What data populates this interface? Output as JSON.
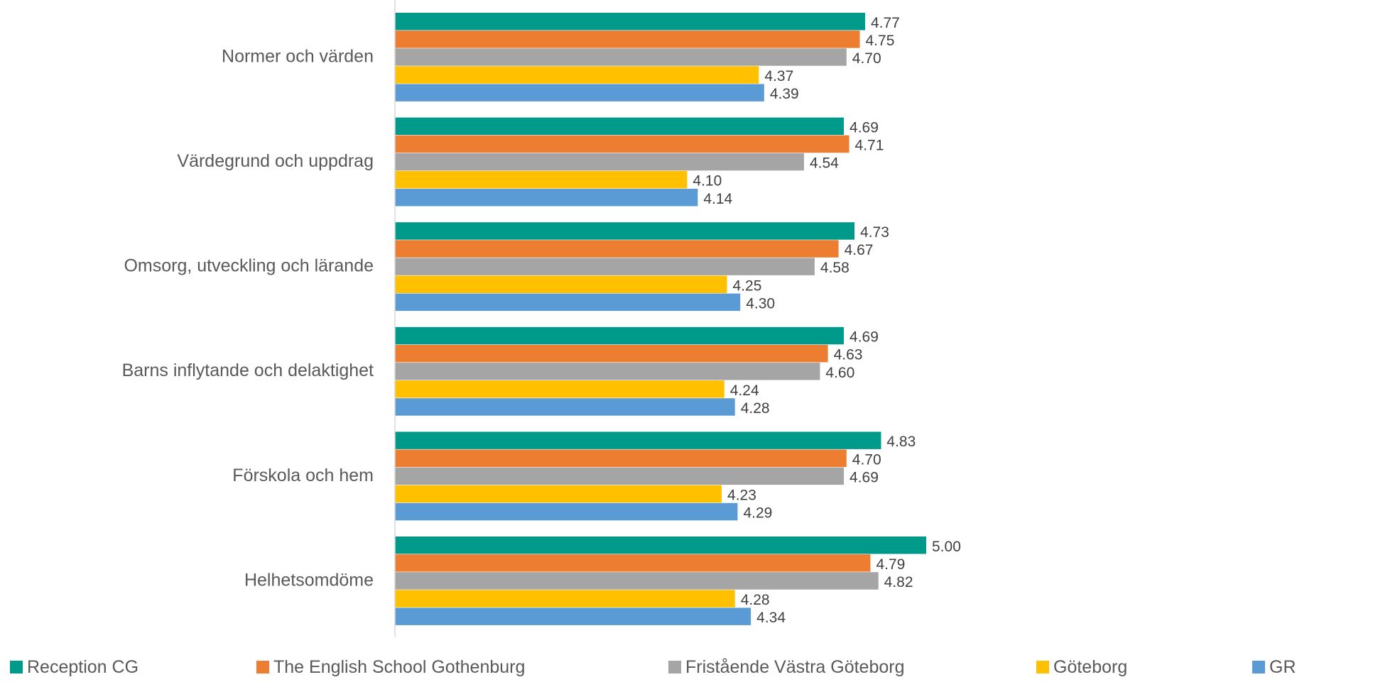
{
  "chart_data": {
    "type": "bar",
    "orientation": "horizontal",
    "title": "",
    "xlabel": "",
    "ylabel": "",
    "xlim": [
      3,
      5
    ],
    "grid": false,
    "legend_position": "bottom",
    "categories": [
      "Normer och värden",
      "Värdegrund och uppdrag",
      "Omsorg, utveckling och lärande",
      "Barns inflytande och delaktighet",
      "Förskola och hem",
      "Helhetsomdöme"
    ],
    "series": [
      {
        "name": "Reception CG",
        "color": "#009A8B",
        "values": [
          4.77,
          4.69,
          4.73,
          4.69,
          4.83,
          5.0
        ],
        "labels": [
          "4.77",
          "4.69",
          "4.73",
          "4.69",
          "4.83",
          "5.00"
        ]
      },
      {
        "name": "The English School Gothenburg",
        "color": "#ED7D31",
        "values": [
          4.75,
          4.71,
          4.67,
          4.63,
          4.7,
          4.79
        ],
        "labels": [
          "4.75",
          "4.71",
          "4.67",
          "4.63",
          "4.70",
          "4.79"
        ]
      },
      {
        "name": "Fristående Västra Göteborg",
        "color": "#A5A5A5",
        "values": [
          4.7,
          4.54,
          4.58,
          4.6,
          4.69,
          4.82
        ],
        "labels": [
          "4.70",
          "4.54",
          "4.58",
          "4.60",
          "4.69",
          "4.82"
        ]
      },
      {
        "name": "Göteborg",
        "color": "#FFC000",
        "values": [
          4.37,
          4.1,
          4.25,
          4.24,
          4.23,
          4.28
        ],
        "labels": [
          "4.37",
          "4.10",
          "4.25",
          "4.24",
          "4.23",
          "4.28"
        ]
      },
      {
        "name": "GR",
        "color": "#5B9BD5",
        "values": [
          4.39,
          4.14,
          4.3,
          4.28,
          4.29,
          4.34
        ],
        "labels": [
          "4.39",
          "4.14",
          "4.30",
          "4.28",
          "4.29",
          "4.34"
        ]
      }
    ]
  }
}
